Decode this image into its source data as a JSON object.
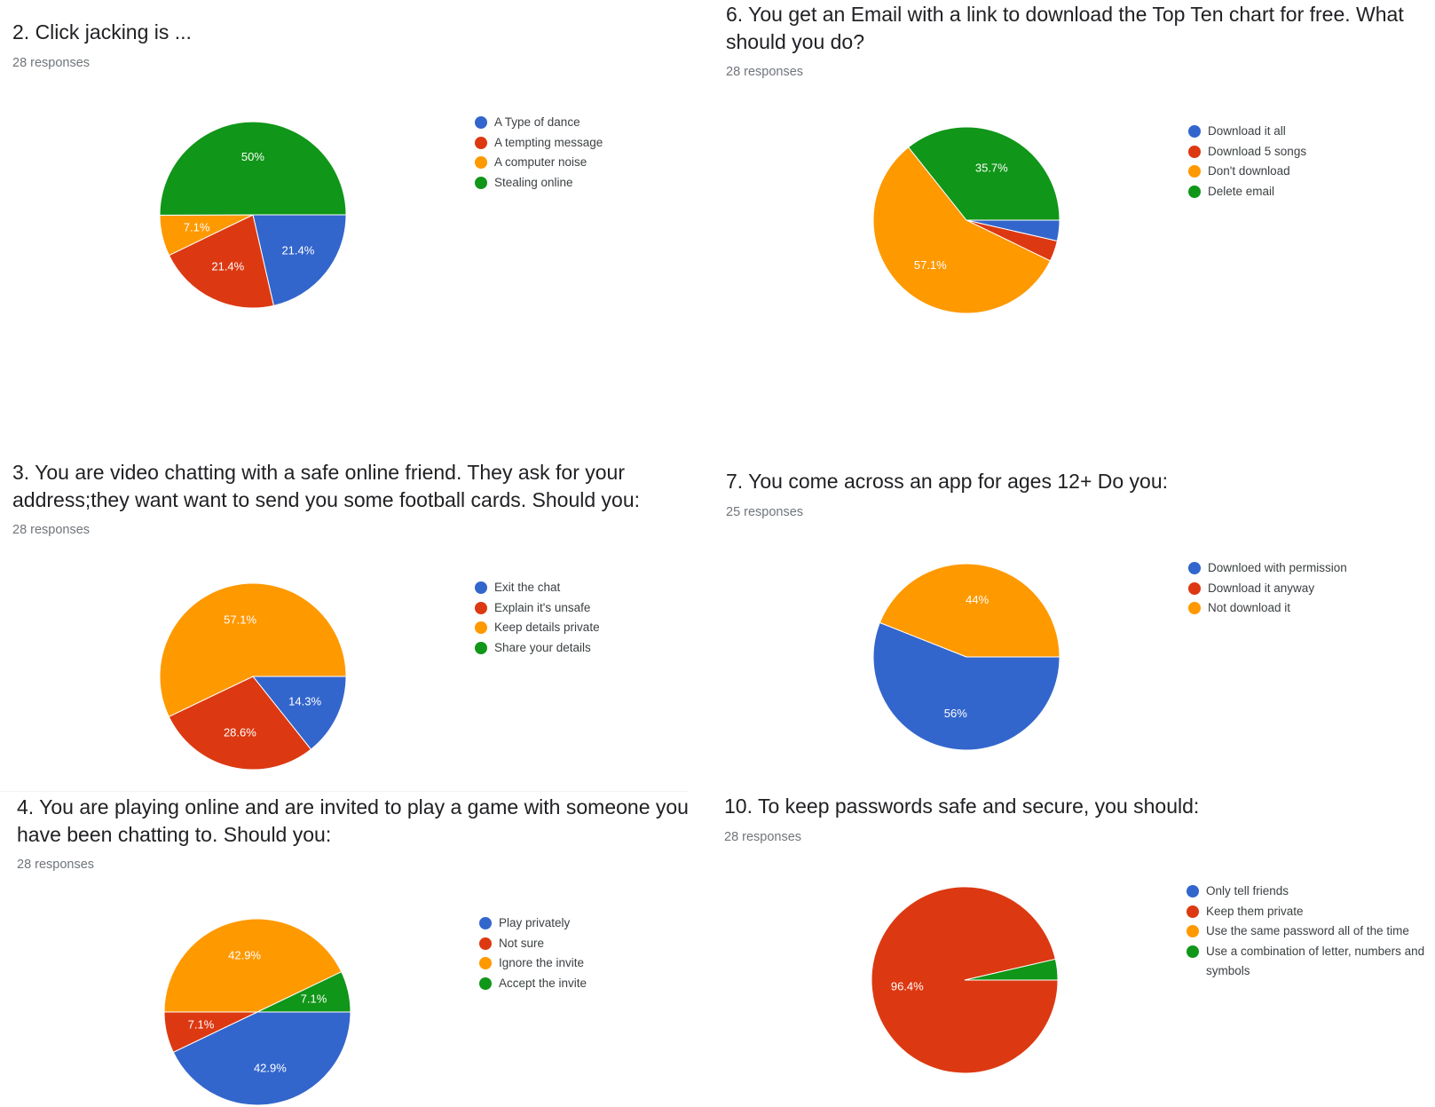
{
  "colors": {
    "blue": "#3366cc",
    "red": "#dc3912",
    "orange": "#ff9900",
    "green": "#109618"
  },
  "chart_data": [
    {
      "type": "pie",
      "title": "2. Click jacking is ...",
      "subtitle": "28 responses",
      "categories": [
        "A Type of dance",
        "A tempting message",
        "A computer noise",
        "Stealing online"
      ],
      "values": [
        21.4,
        21.4,
        7.1,
        50
      ],
      "labels": [
        "21.4%",
        "21.4%",
        "7.1%",
        "50%"
      ],
      "legend": "right"
    },
    {
      "type": "pie",
      "title": "6. You get an Email with a link to download the Top Ten chart for free. What should you do?",
      "subtitle": "28 responses",
      "categories": [
        "Download it all",
        "Download 5 songs",
        "Don't download",
        "Delete email"
      ],
      "values": [
        3.6,
        3.6,
        57.1,
        35.7
      ],
      "labels": [
        "",
        "",
        "57.1%",
        "35.7%"
      ],
      "legend": "right"
    },
    {
      "type": "pie",
      "title": "3. You are video chatting with a safe online friend. They ask for your address;they want want to send you some football cards. Should you:",
      "subtitle": "28 responses",
      "categories": [
        "Exit the chat",
        "Explain it's unsafe",
        "Keep details private",
        "Share your details"
      ],
      "values": [
        14.3,
        28.6,
        57.1,
        0
      ],
      "labels": [
        "14.3%",
        "28.6%",
        "57.1%",
        ""
      ],
      "legend": "right"
    },
    {
      "type": "pie",
      "title": "7. You come across an app for ages 12+ Do you:",
      "subtitle": "25 responses",
      "categories": [
        "Downloed with permission",
        "Download it anyway",
        "Not download it"
      ],
      "values": [
        56,
        0,
        44
      ],
      "labels": [
        "56%",
        "",
        "44%"
      ],
      "legend": "right"
    },
    {
      "type": "pie",
      "title": "4. You are playing online and are invited to play a game with someone you have been chatting to. Should you:",
      "subtitle": "28 responses",
      "categories": [
        "Play privately",
        "Not sure",
        "Ignore the invite",
        "Accept the invite"
      ],
      "values": [
        42.9,
        7.1,
        42.9,
        7.1
      ],
      "labels": [
        "42.9%",
        "7.1%",
        "42.9%",
        "7.1%"
      ],
      "legend": "right"
    },
    {
      "type": "pie",
      "title": "10. To keep passwords safe and secure, you should:",
      "subtitle": "28 responses",
      "categories": [
        "Only tell friends",
        "Keep them private",
        "Use the same password all of the time",
        "Use a combination of letter, numbers and symbols"
      ],
      "values": [
        0,
        96.4,
        0,
        3.6
      ],
      "labels": [
        "",
        "96.4%",
        "",
        ""
      ],
      "legend": "right"
    }
  ]
}
